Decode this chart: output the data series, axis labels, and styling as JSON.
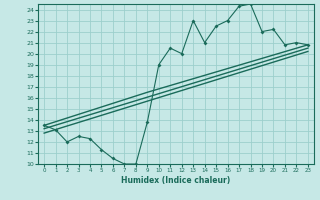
{
  "title": "",
  "xlabel": "Humidex (Indice chaleur)",
  "xlim": [
    -0.5,
    23.5
  ],
  "ylim": [
    10,
    24.5
  ],
  "yticks": [
    10,
    11,
    12,
    13,
    14,
    15,
    16,
    17,
    18,
    19,
    20,
    21,
    22,
    23,
    24
  ],
  "xticks": [
    0,
    1,
    2,
    3,
    4,
    5,
    6,
    7,
    8,
    9,
    10,
    11,
    12,
    13,
    14,
    15,
    16,
    17,
    18,
    19,
    20,
    21,
    22,
    23
  ],
  "bg_color": "#c6e8e6",
  "grid_color": "#9dcfcc",
  "line_color": "#1a6b5a",
  "line1_x": [
    0,
    1,
    2,
    3,
    4,
    5,
    6,
    7,
    8,
    9,
    10,
    11,
    12,
    13,
    14,
    15,
    16,
    17,
    18,
    19,
    20,
    21,
    22,
    23
  ],
  "line1_y": [
    13.5,
    13.1,
    12.0,
    12.5,
    12.3,
    11.3,
    10.5,
    10.0,
    10.0,
    13.8,
    19.0,
    20.5,
    20.0,
    23.0,
    21.0,
    22.5,
    23.0,
    24.3,
    24.5,
    22.0,
    22.2,
    20.8,
    21.0,
    20.8
  ],
  "line2_x": [
    0,
    9,
    23
  ],
  "line2_y": [
    13.5,
    16.5,
    20.8
  ],
  "line3_x": [
    0,
    23
  ],
  "line3_y": [
    13.2,
    20.5
  ],
  "line4_x": [
    0,
    23
  ],
  "line4_y": [
    12.8,
    20.2
  ]
}
